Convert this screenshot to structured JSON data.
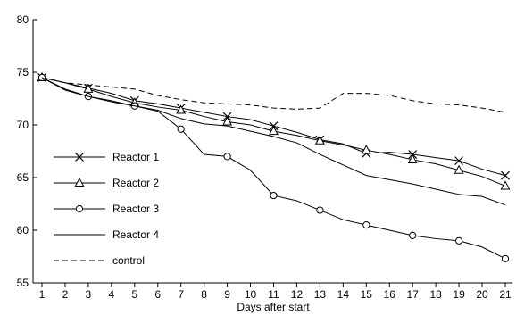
{
  "chart_data": {
    "type": "line",
    "title": "",
    "xlabel": "Days after start",
    "ylabel": "",
    "xlim": [
      1,
      21
    ],
    "ylim": [
      55,
      80
    ],
    "x": [
      1,
      2,
      3,
      4,
      5,
      6,
      7,
      8,
      9,
      10,
      11,
      12,
      13,
      14,
      15,
      16,
      17,
      18,
      19,
      20,
      21
    ],
    "xticks": [
      1,
      2,
      3,
      4,
      5,
      6,
      7,
      8,
      9,
      10,
      11,
      12,
      13,
      14,
      15,
      16,
      17,
      18,
      19,
      20,
      21
    ],
    "yticks": [
      55,
      60,
      65,
      70,
      75,
      80
    ],
    "grid": false,
    "legend_position": "lower-left",
    "series": [
      {
        "name": "Reactor 1",
        "marker": "x",
        "dash": "solid",
        "color": "#000000",
        "values": [
          74.5,
          74.0,
          73.5,
          73.0,
          72.3,
          72.0,
          71.6,
          71.2,
          70.8,
          70.5,
          69.9,
          69.3,
          68.6,
          68.2,
          67.3,
          67.4,
          67.2,
          66.9,
          66.6,
          65.8,
          65.2
        ]
      },
      {
        "name": "Reactor 2",
        "marker": "triangle",
        "dash": "solid",
        "color": "#000000",
        "values": [
          74.5,
          74.0,
          73.4,
          72.7,
          72.1,
          71.7,
          71.4,
          70.8,
          70.3,
          70.0,
          69.4,
          69.0,
          68.5,
          68.1,
          67.6,
          67.2,
          66.7,
          66.3,
          65.7,
          65.1,
          64.2
        ]
      },
      {
        "name": "Reactor 3",
        "marker": "circle",
        "dash": "solid",
        "color": "#000000",
        "values": [
          74.5,
          73.3,
          72.7,
          72.3,
          71.8,
          71.3,
          69.6,
          67.2,
          67.0,
          65.7,
          63.3,
          62.8,
          61.9,
          61.0,
          60.5,
          60.0,
          59.5,
          59.2,
          59.0,
          58.4,
          57.3
        ]
      },
      {
        "name": "Reactor 4",
        "marker": "none",
        "dash": "solid",
        "color": "#000000",
        "values": [
          74.5,
          73.4,
          72.7,
          72.2,
          71.8,
          71.4,
          70.6,
          70.1,
          69.9,
          69.4,
          68.9,
          68.3,
          67.2,
          66.2,
          65.2,
          64.8,
          64.4,
          63.9,
          63.4,
          63.2,
          62.4
        ]
      },
      {
        "name": "control",
        "marker": "none",
        "dash": "dashed",
        "color": "#000000",
        "values": [
          74.5,
          74.0,
          73.8,
          73.6,
          73.4,
          72.8,
          72.4,
          72.1,
          72.0,
          71.9,
          71.6,
          71.5,
          71.6,
          73.0,
          73.0,
          72.8,
          72.3,
          72.0,
          71.9,
          71.6,
          71.2
        ]
      }
    ]
  }
}
